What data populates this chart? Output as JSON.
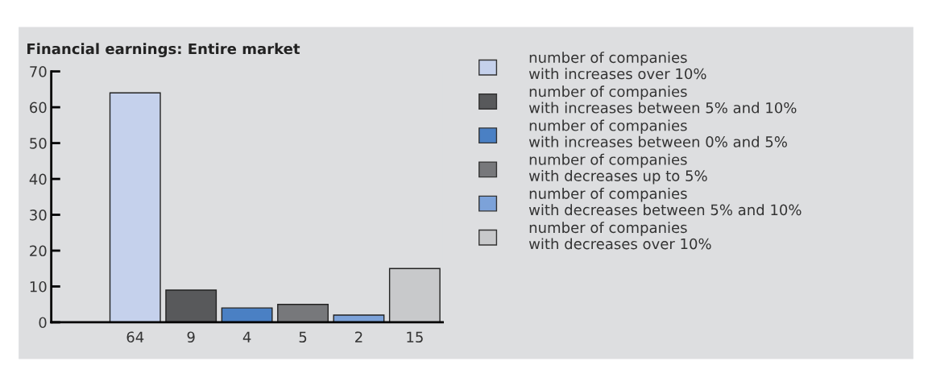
{
  "chart_data": {
    "type": "bar",
    "title": "Financial earnings: Entire market",
    "categories": [
      null,
      null,
      null,
      null,
      null,
      null,
      null
    ],
    "series": [
      {
        "name": "number of companies\nwith increases over 10%",
        "color": "#c5d1ec",
        "values": [
          null,
          64,
          null,
          null,
          null,
          null,
          null
        ]
      },
      {
        "name": "number of companies\nwith increases between 5% and 10%",
        "color": "#58595b",
        "values": [
          null,
          null,
          9,
          null,
          null,
          null,
          null
        ]
      },
      {
        "name": "number of companies\nwith increases between 0% and 5%",
        "color": "#4a80c4",
        "values": [
          null,
          null,
          null,
          4,
          null,
          null,
          null
        ]
      },
      {
        "name": "number of companies\nwith decreases up to 5%",
        "color": "#77787b",
        "values": [
          null,
          null,
          null,
          null,
          5,
          null,
          null
        ]
      },
      {
        "name": "number of companies\nwith decreases between 5% and 10%",
        "color": "#7ca2d9",
        "values": [
          null,
          null,
          null,
          null,
          null,
          2,
          null
        ]
      },
      {
        "name": "number of companies\nwith decreases over 10%",
        "color": "#c8c9cb",
        "values": [
          null,
          null,
          null,
          null,
          null,
          null,
          15
        ]
      }
    ],
    "ylim": [
      0,
      70
    ],
    "yticks": [
      0,
      10,
      20,
      30,
      40,
      50,
      60,
      70
    ],
    "data_labels": true,
    "grid": false,
    "legend": "right"
  }
}
